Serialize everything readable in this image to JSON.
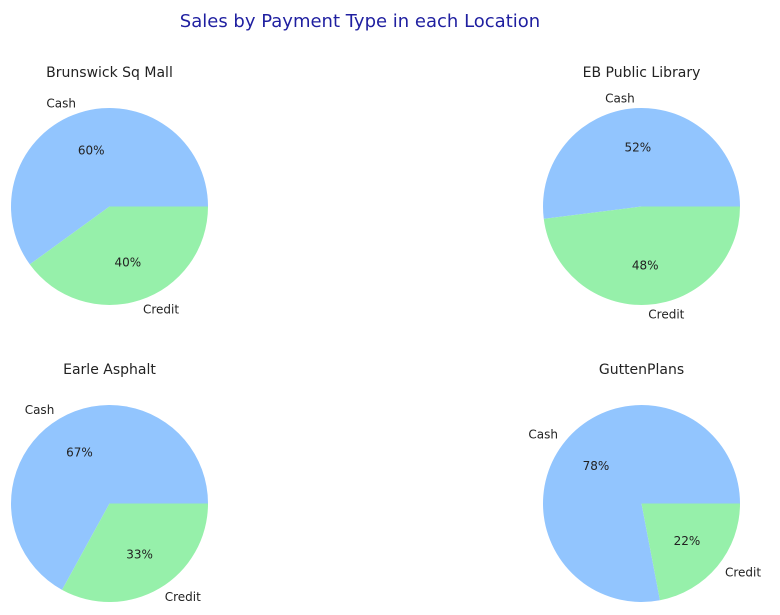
{
  "figure": {
    "title": "Sales by Payment Type in each Location"
  },
  "chart_data": [
    {
      "type": "pie",
      "title": "Brunswick Sq Mall",
      "labels": [
        "Cash",
        "Credit"
      ],
      "values": [
        60,
        40
      ],
      "value_labels": [
        "60%",
        "40%"
      ],
      "colors": [
        "#92c5fe",
        "#96f0aa"
      ],
      "start_angle": 0,
      "direction": "counterclockwise"
    },
    {
      "type": "pie",
      "title": "EB Public Library",
      "labels": [
        "Cash",
        "Credit"
      ],
      "values": [
        52,
        48
      ],
      "value_labels": [
        "52%",
        "48%"
      ],
      "colors": [
        "#92c5fe",
        "#96f0aa"
      ],
      "start_angle": 0,
      "direction": "counterclockwise"
    },
    {
      "type": "pie",
      "title": "Earle Asphalt",
      "labels": [
        "Cash",
        "Credit"
      ],
      "values": [
        67,
        33
      ],
      "value_labels": [
        "67%",
        "33%"
      ],
      "colors": [
        "#92c5fe",
        "#96f0aa"
      ],
      "start_angle": 0,
      "direction": "counterclockwise"
    },
    {
      "type": "pie",
      "title": "GuttenPlans",
      "labels": [
        "Cash",
        "Credit"
      ],
      "values": [
        78,
        22
      ],
      "value_labels": [
        "78%",
        "22%"
      ],
      "colors": [
        "#92c5fe",
        "#96f0aa"
      ],
      "start_angle": 0,
      "direction": "counterclockwise"
    }
  ]
}
